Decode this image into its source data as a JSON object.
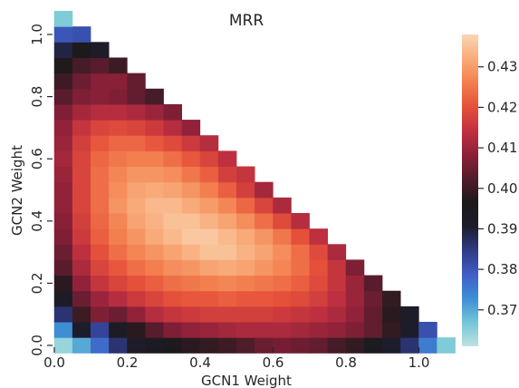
{
  "chart_data": {
    "type": "heatmap",
    "title": "MRR",
    "xlabel": "GCN1 Weight",
    "ylabel": "GCN2 Weight",
    "xlim": [
      0.0,
      1.0
    ],
    "ylim": [
      0.0,
      1.0
    ],
    "step": 0.05,
    "x_tick_labels": [
      "0.0",
      "0.2",
      "0.4",
      "0.6",
      "0.8",
      "1.0"
    ],
    "y_tick_labels": [
      "0.0",
      "0.2",
      "0.4",
      "0.6",
      "0.8",
      "1.0"
    ],
    "colorbar": {
      "range": [
        0.361,
        0.438
      ],
      "tick_labels": [
        "0.37",
        "0.38",
        "0.39",
        "0.40",
        "0.41",
        "0.42",
        "0.43"
      ],
      "colormap": "icefire",
      "stops": [
        "#bde3e1",
        "#73c6d6",
        "#3e8ed5",
        "#3f5dc6",
        "#2f3a85",
        "#1d1c2c",
        "#1c1a1b",
        "#531c2b",
        "#8c2039",
        "#c1313f",
        "#e6513a",
        "#f3804f",
        "#f8ab7a",
        "#fbd7b3"
      ]
    },
    "cells": [
      {
        "y": 0.0,
        "values": [
          0.364,
          0.37,
          0.377,
          0.386,
          0.392,
          0.394,
          0.396,
          0.398,
          0.399,
          0.4,
          0.402,
          0.405,
          0.406,
          0.405,
          0.404,
          0.401,
          0.399,
          0.395,
          0.391,
          0.386,
          0.375,
          0.366
        ]
      },
      {
        "y": 0.05,
        "values": [
          0.373,
          0.391,
          0.383,
          0.393,
          0.398,
          0.403,
          0.407,
          0.409,
          0.41,
          0.411,
          0.412,
          0.412,
          0.412,
          0.411,
          0.41,
          0.409,
          0.407,
          0.404,
          0.399,
          0.391,
          0.381
        ]
      },
      {
        "y": 0.1,
        "values": [
          0.386,
          0.4,
          0.407,
          0.405,
          0.409,
          0.413,
          0.415,
          0.416,
          0.417,
          0.417,
          0.417,
          0.417,
          0.416,
          0.415,
          0.414,
          0.412,
          0.409,
          0.404,
          0.398,
          0.392
        ]
      },
      {
        "y": 0.15,
        "values": [
          0.393,
          0.405,
          0.41,
          0.413,
          0.416,
          0.418,
          0.42,
          0.421,
          0.421,
          0.422,
          0.421,
          0.421,
          0.42,
          0.419,
          0.417,
          0.414,
          0.41,
          0.405,
          0.399
        ]
      },
      {
        "y": 0.2,
        "values": [
          0.398,
          0.409,
          0.415,
          0.418,
          0.42,
          0.422,
          0.424,
          0.425,
          0.426,
          0.427,
          0.426,
          0.425,
          0.424,
          0.422,
          0.419,
          0.415,
          0.41,
          0.403
        ]
      },
      {
        "y": 0.25,
        "values": [
          0.403,
          0.412,
          0.418,
          0.421,
          0.424,
          0.426,
          0.428,
          0.429,
          0.431,
          0.432,
          0.431,
          0.429,
          0.427,
          0.424,
          0.42,
          0.415,
          0.407
        ]
      },
      {
        "y": 0.3,
        "values": [
          0.405,
          0.414,
          0.42,
          0.424,
          0.427,
          0.429,
          0.431,
          0.433,
          0.435,
          0.435,
          0.433,
          0.431,
          0.428,
          0.424,
          0.419,
          0.412
        ]
      },
      {
        "y": 0.35,
        "values": [
          0.407,
          0.416,
          0.422,
          0.426,
          0.429,
          0.432,
          0.434,
          0.436,
          0.436,
          0.434,
          0.432,
          0.429,
          0.425,
          0.42,
          0.414
        ]
      },
      {
        "y": 0.4,
        "values": [
          0.408,
          0.417,
          0.423,
          0.427,
          0.431,
          0.433,
          0.435,
          0.435,
          0.433,
          0.431,
          0.428,
          0.424,
          0.419,
          0.413
        ]
      },
      {
        "y": 0.45,
        "values": [
          0.409,
          0.418,
          0.424,
          0.429,
          0.432,
          0.434,
          0.434,
          0.432,
          0.43,
          0.427,
          0.423,
          0.418,
          0.412
        ]
      },
      {
        "y": 0.5,
        "values": [
          0.409,
          0.418,
          0.424,
          0.428,
          0.431,
          0.432,
          0.431,
          0.429,
          0.426,
          0.422,
          0.417,
          0.411
        ]
      },
      {
        "y": 0.55,
        "values": [
          0.41,
          0.418,
          0.424,
          0.427,
          0.429,
          0.429,
          0.428,
          0.425,
          0.422,
          0.417,
          0.415
        ]
      },
      {
        "y": 0.6,
        "values": [
          0.411,
          0.418,
          0.423,
          0.425,
          0.426,
          0.426,
          0.424,
          0.421,
          0.418,
          0.414
        ]
      },
      {
        "y": 0.65,
        "values": [
          0.41,
          0.417,
          0.421,
          0.423,
          0.423,
          0.421,
          0.419,
          0.416,
          0.413
        ]
      },
      {
        "y": 0.7,
        "values": [
          0.409,
          0.415,
          0.418,
          0.419,
          0.418,
          0.416,
          0.413,
          0.409
        ]
      },
      {
        "y": 0.75,
        "values": [
          0.407,
          0.411,
          0.413,
          0.413,
          0.412,
          0.41,
          0.407
        ]
      },
      {
        "y": 0.8,
        "values": [
          0.403,
          0.407,
          0.408,
          0.407,
          0.404,
          0.401
        ]
      },
      {
        "y": 0.85,
        "values": [
          0.4,
          0.405,
          0.408,
          0.408,
          0.404
        ]
      },
      {
        "y": 0.9,
        "values": [
          0.397,
          0.401,
          0.403,
          0.4
        ]
      },
      {
        "y": 0.95,
        "values": [
          0.389,
          0.396,
          0.392
        ]
      },
      {
        "y": 1.0,
        "values": [
          0.38,
          0.381
        ]
      },
      {
        "y": 1.05,
        "values": [
          0.366
        ]
      }
    ]
  }
}
